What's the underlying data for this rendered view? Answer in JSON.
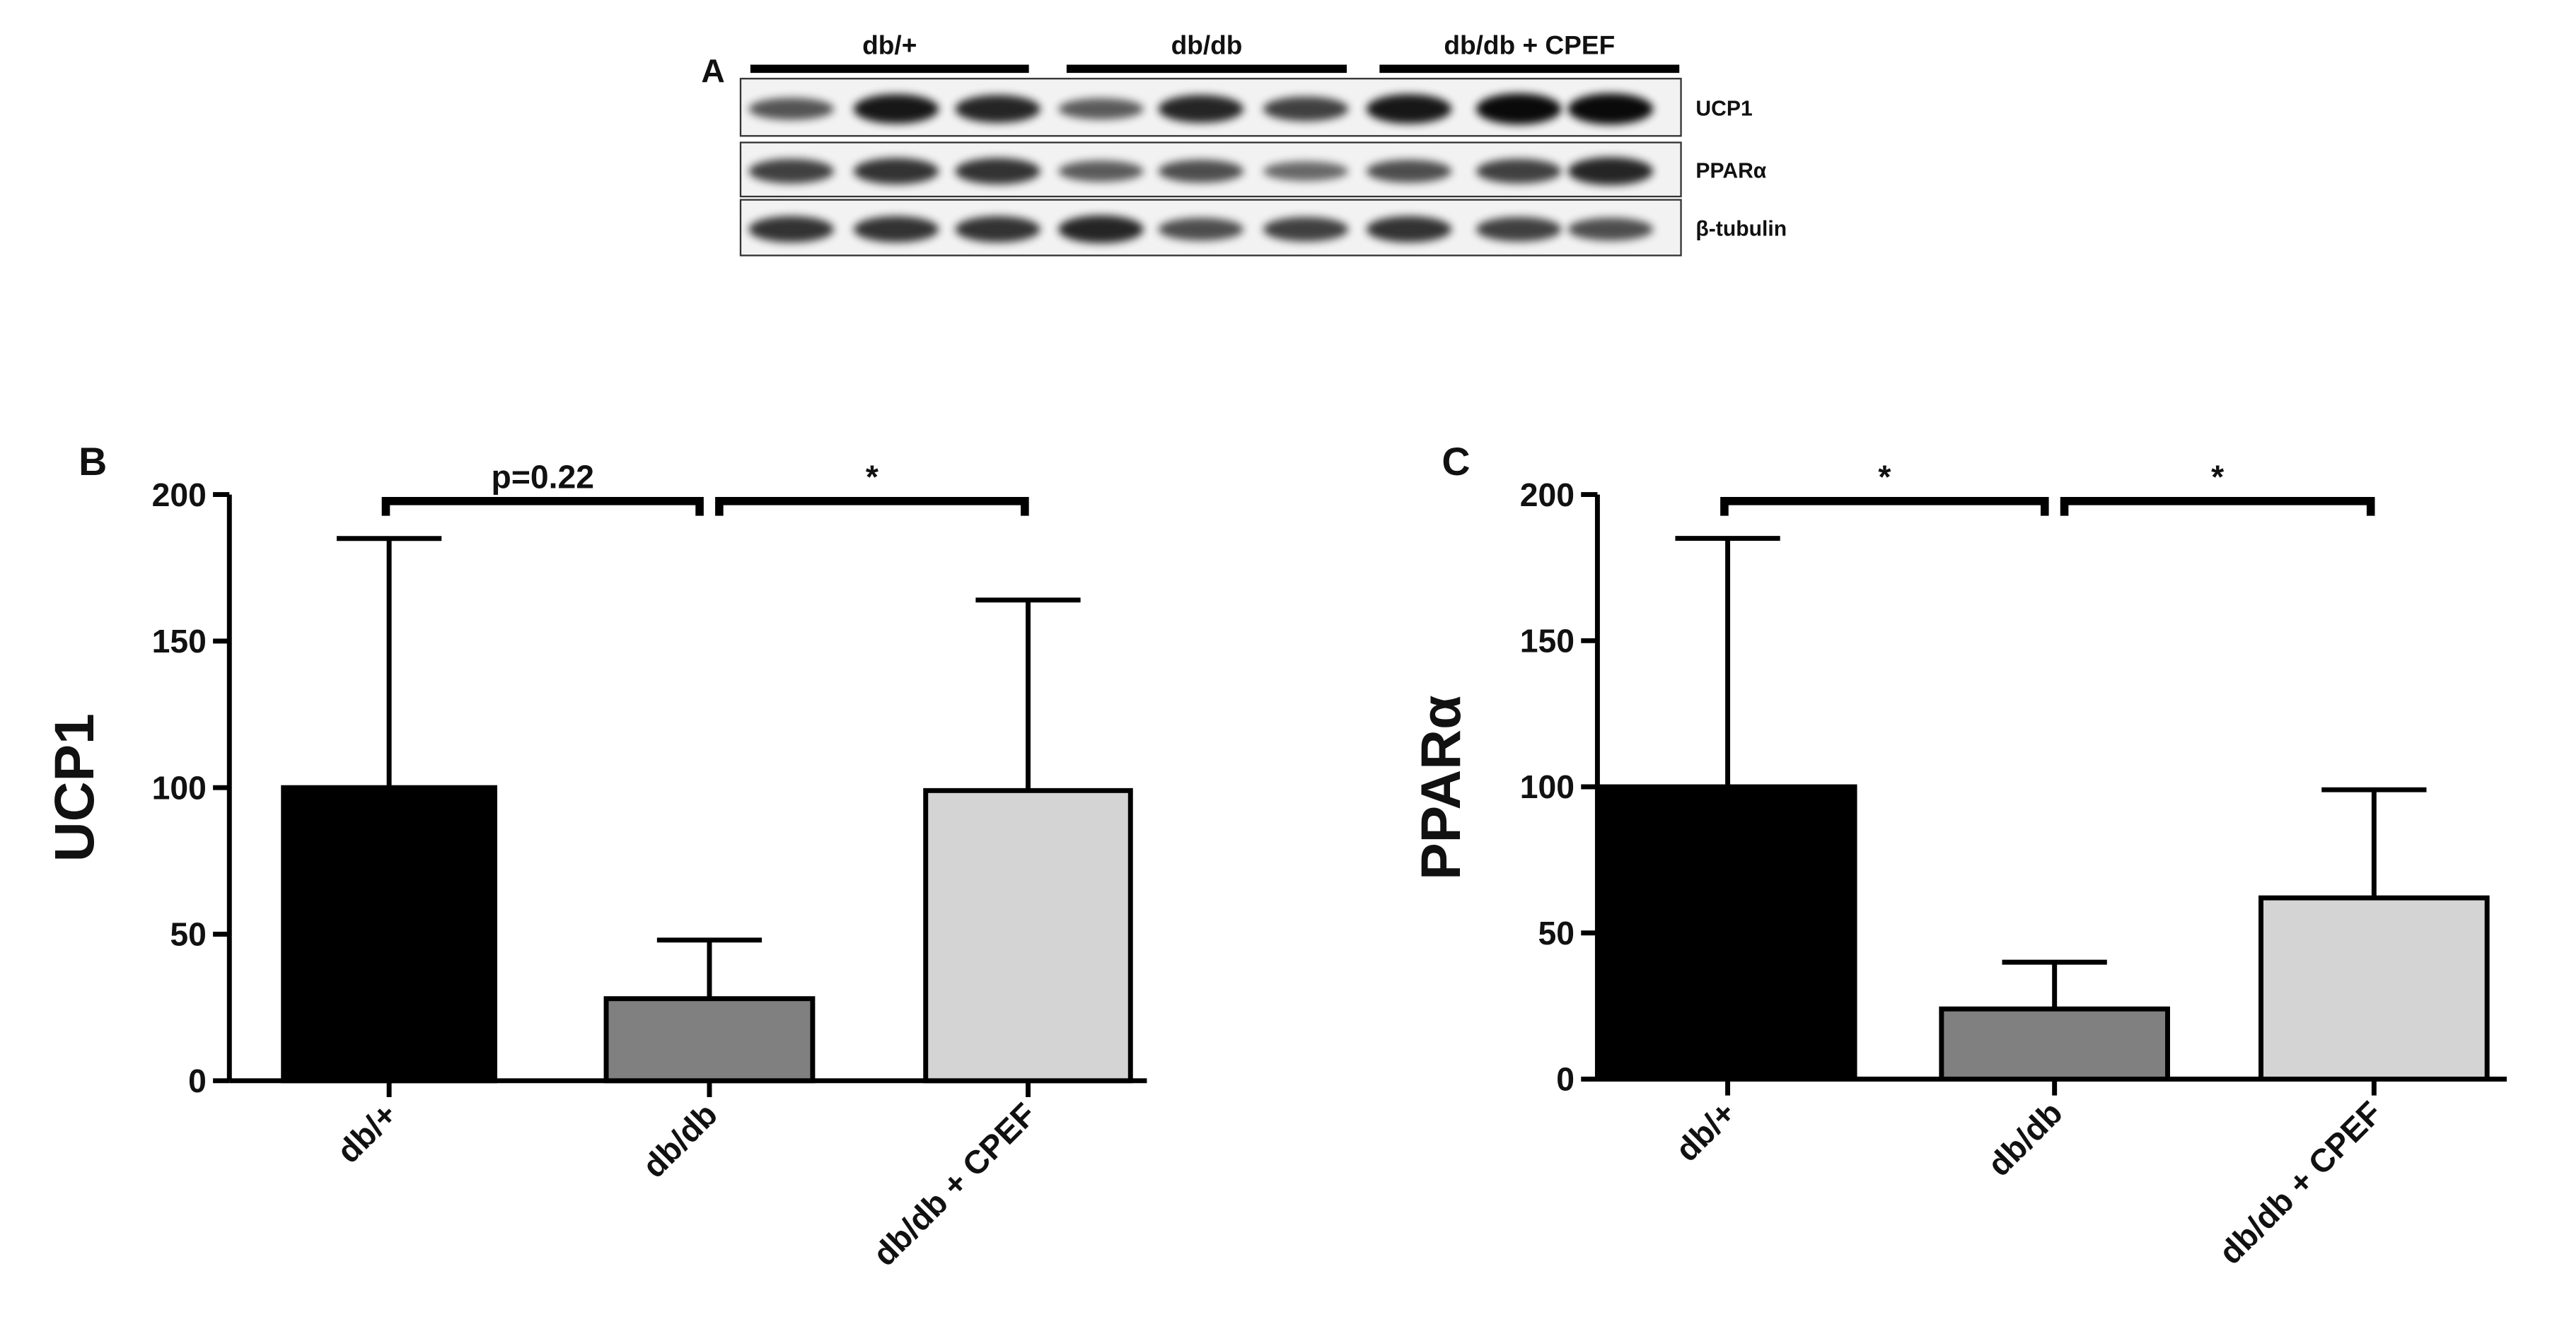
{
  "western_blot": {
    "panel_label": "A",
    "groups": [
      "db/+",
      "db/db",
      "db/db + CPEF"
    ],
    "rows": [
      "UCP1",
      "PPARα",
      "β-tubulin"
    ]
  },
  "chart_data": [
    {
      "type": "bar",
      "panel_label": "B",
      "ylabel": "UCP1",
      "categories": [
        "db/+",
        "db/db",
        "db/db + CPEF"
      ],
      "values": [
        100,
        28,
        99
      ],
      "errors": [
        85,
        20,
        65
      ],
      "colors": [
        "#000000",
        "#808080",
        "#d4d4d4"
      ],
      "ylim": [
        0,
        200
      ],
      "yticks": [
        0,
        50,
        100,
        150,
        200
      ],
      "annotations": [
        "p=0.22",
        "*"
      ]
    },
    {
      "type": "bar",
      "panel_label": "C",
      "ylabel": "PPARα",
      "categories": [
        "db/+",
        "db/db",
        "db/db + CPEF"
      ],
      "values": [
        100,
        24,
        62
      ],
      "errors": [
        85,
        16,
        37
      ],
      "colors": [
        "#000000",
        "#808080",
        "#d4d4d4"
      ],
      "ylim": [
        0,
        200
      ],
      "yticks": [
        0,
        50,
        100,
        150,
        200
      ],
      "annotations": [
        "*",
        "*"
      ]
    }
  ]
}
